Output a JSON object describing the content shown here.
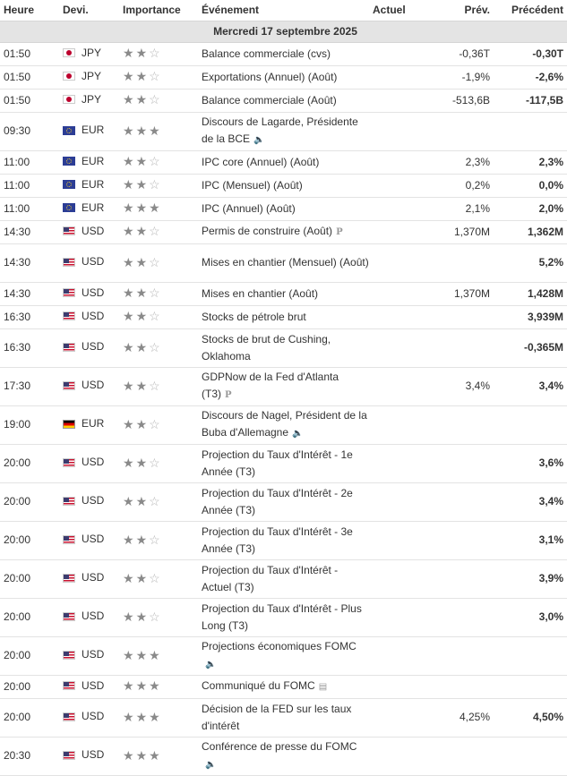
{
  "headers": {
    "time": "Heure",
    "currency": "Devi.",
    "importance": "Importance",
    "event": "Événement",
    "actual": "Actuel",
    "forecast": "Prév.",
    "previous": "Précédent"
  },
  "date_label": "Mercredi 17 septembre 2025",
  "rows": [
    {
      "time": "01:50",
      "currency": "JPY",
      "flag": "jpy",
      "stars": 2,
      "event": "Balance commerciale (cvs)",
      "tag": "",
      "actual": "",
      "forecast": "-0,36T",
      "previous": "-0,30T"
    },
    {
      "time": "01:50",
      "currency": "JPY",
      "flag": "jpy",
      "stars": 2,
      "event": "Exportations (Annuel) (Août)",
      "tag": "",
      "actual": "",
      "forecast": "-1,9%",
      "previous": "-2,6%"
    },
    {
      "time": "01:50",
      "currency": "JPY",
      "flag": "jpy",
      "stars": 2,
      "event": "Balance commerciale (Août)",
      "tag": "",
      "actual": "",
      "forecast": "-513,6B",
      "previous": "-117,5B"
    },
    {
      "time": "09:30",
      "currency": "EUR",
      "flag": "eur",
      "stars": 3,
      "event": "Discours de Lagarde, Présidente de la BCE",
      "tag": "speaker",
      "actual": "",
      "forecast": "",
      "previous": ""
    },
    {
      "time": "11:00",
      "currency": "EUR",
      "flag": "eur",
      "stars": 2,
      "event": "IPC core (Annuel) (Août)",
      "tag": "",
      "actual": "",
      "forecast": "2,3%",
      "previous": "2,3%"
    },
    {
      "time": "11:00",
      "currency": "EUR",
      "flag": "eur",
      "stars": 2,
      "event": "IPC (Mensuel) (Août)",
      "tag": "",
      "actual": "",
      "forecast": "0,2%",
      "previous": "0,0%"
    },
    {
      "time": "11:00",
      "currency": "EUR",
      "flag": "eur",
      "stars": 3,
      "event": "IPC (Annuel) (Août)",
      "tag": "",
      "actual": "",
      "forecast": "2,1%",
      "previous": "2,0%"
    },
    {
      "time": "14:30",
      "currency": "USD",
      "flag": "usd",
      "stars": 2,
      "event": "Permis de construire (Août)",
      "tag": "p",
      "actual": "",
      "forecast": "1,370M",
      "previous": "1,362M"
    },
    {
      "time": "14:30",
      "currency": "USD",
      "flag": "usd",
      "stars": 2,
      "event": "Mises en chantier (Mensuel) (Août)",
      "tag": "",
      "actual": "",
      "forecast": "",
      "previous": "5,2%"
    },
    {
      "time": "14:30",
      "currency": "USD",
      "flag": "usd",
      "stars": 2,
      "event": "Mises en chantier (Août)",
      "tag": "",
      "actual": "",
      "forecast": "1,370M",
      "previous": "1,428M"
    },
    {
      "time": "16:30",
      "currency": "USD",
      "flag": "usd",
      "stars": 2,
      "event": "Stocks de pétrole brut",
      "tag": "",
      "actual": "",
      "forecast": "",
      "previous": "3,939M"
    },
    {
      "time": "16:30",
      "currency": "USD",
      "flag": "usd",
      "stars": 2,
      "event": "Stocks de brut de Cushing, Oklahoma",
      "tag": "",
      "actual": "",
      "forecast": "",
      "previous": "-0,365M"
    },
    {
      "time": "17:30",
      "currency": "USD",
      "flag": "usd",
      "stars": 2,
      "event": "GDPNow de la Fed d'Atlanta (T3)",
      "tag": "p",
      "actual": "",
      "forecast": "3,4%",
      "previous": "3,4%"
    },
    {
      "time": "19:00",
      "currency": "EUR",
      "flag": "de",
      "stars": 2,
      "event": "Discours de Nagel, Président de la Buba d'Allemagne",
      "tag": "speaker",
      "actual": "",
      "forecast": "",
      "previous": ""
    },
    {
      "time": "20:00",
      "currency": "USD",
      "flag": "usd",
      "stars": 2,
      "event": "Projection du Taux d'Intérêt - 1e Année (T3)",
      "tag": "",
      "actual": "",
      "forecast": "",
      "previous": "3,6%"
    },
    {
      "time": "20:00",
      "currency": "USD",
      "flag": "usd",
      "stars": 2,
      "event": "Projection du Taux d'Intérêt - 2e Année (T3)",
      "tag": "",
      "actual": "",
      "forecast": "",
      "previous": "3,4%"
    },
    {
      "time": "20:00",
      "currency": "USD",
      "flag": "usd",
      "stars": 2,
      "event": "Projection du Taux d'Intérêt - 3e Année (T3)",
      "tag": "",
      "actual": "",
      "forecast": "",
      "previous": "3,1%"
    },
    {
      "time": "20:00",
      "currency": "USD",
      "flag": "usd",
      "stars": 2,
      "event": "Projection du Taux d'Intérêt - Actuel (T3)",
      "tag": "",
      "actual": "",
      "forecast": "",
      "previous": "3,9%"
    },
    {
      "time": "20:00",
      "currency": "USD",
      "flag": "usd",
      "stars": 2,
      "event": "Projection du Taux d'Intérêt - Plus Long (T3)",
      "tag": "",
      "actual": "",
      "forecast": "",
      "previous": "3,0%"
    },
    {
      "time": "20:00",
      "currency": "USD",
      "flag": "usd",
      "stars": 3,
      "event": "Projections économiques FOMC",
      "tag": "speaker",
      "actual": "",
      "forecast": "",
      "previous": ""
    },
    {
      "time": "20:00",
      "currency": "USD",
      "flag": "usd",
      "stars": 3,
      "event": "Communiqué du FOMC",
      "tag": "doc",
      "actual": "",
      "forecast": "",
      "previous": ""
    },
    {
      "time": "20:00",
      "currency": "USD",
      "flag": "usd",
      "stars": 3,
      "event": "Décision de la FED sur les taux d'intérêt",
      "tag": "",
      "actual": "",
      "forecast": "4,25%",
      "previous": "4,50%"
    },
    {
      "time": "20:30",
      "currency": "USD",
      "flag": "usd",
      "stars": 3,
      "event": "Conférence de presse du FOMC",
      "tag": "speaker",
      "actual": "",
      "forecast": "",
      "previous": ""
    }
  ]
}
